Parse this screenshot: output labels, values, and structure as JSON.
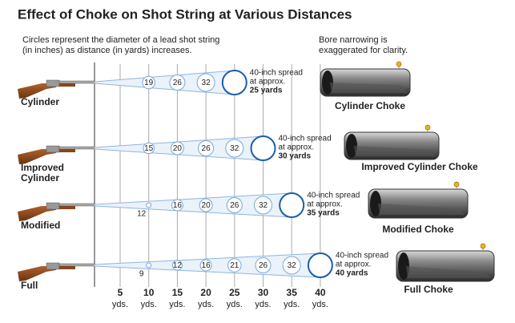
{
  "title": "Effect of Choke on Shot String at Various Distances",
  "note_left": [
    "Circles represent the diameter of a lead shot string",
    "(in inches) as distance (in yards) increases."
  ],
  "note_right": [
    "Bore narrowing is",
    "exaggerated for clarity."
  ],
  "distances": [
    "5",
    "10",
    "15",
    "20",
    "25",
    "30",
    "35",
    "40"
  ],
  "distance_unit": "yds.",
  "rows": [
    {
      "name": [
        "Cylinder"
      ],
      "circles": [
        "19",
        "26",
        "32"
      ],
      "spread": [
        "40-inch spread",
        "at approx.",
        "25 yards"
      ],
      "choke": "Cylinder Choke"
    },
    {
      "name": [
        "Improved",
        "Cylinder"
      ],
      "circles": [
        "15",
        "20",
        "26",
        "32"
      ],
      "spread": [
        "40-inch spread",
        "at approx.",
        "30 yards"
      ],
      "choke": "Improved Cylinder Choke"
    },
    {
      "name": [
        "Modified"
      ],
      "circles": [
        "12",
        "16",
        "20",
        "26",
        "32"
      ],
      "spread": [
        "40-inch spread",
        "at approx.",
        "35 yards"
      ],
      "choke": "Modified Choke"
    },
    {
      "name": [
        "Full"
      ],
      "circles": [
        "9",
        "12",
        "16",
        "21",
        "26",
        "32"
      ],
      "spread": [
        "40-inch spread",
        "at approx.",
        "40 yards"
      ],
      "choke": "Full Choke"
    }
  ]
}
